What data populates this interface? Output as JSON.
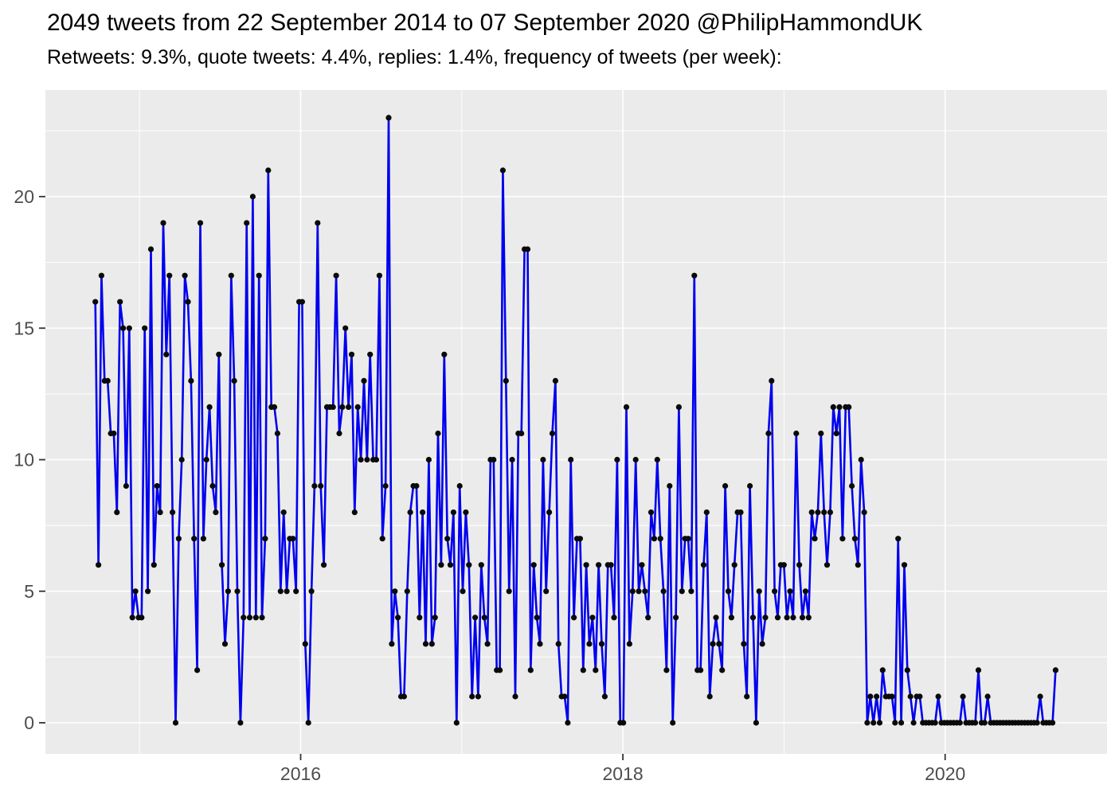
{
  "header": {
    "title": "2049 tweets from 22 September 2014 to 07 September 2020 @PhilipHammondUK",
    "subtitle": "Retweets: 9.3%, quote tweets: 4.4%, replies: 1.4%, frequency of tweets (per week):"
  },
  "chart_data": {
    "type": "line",
    "title": "2049 tweets from 22 September 2014 to 07 September 2020 @PhilipHammondUK",
    "subtitle": "Retweets: 9.3%, quote tweets: 4.4%, replies: 1.4%, frequency of tweets (per week):",
    "series_name": "tweets per week",
    "start_date": "2014-09-22",
    "end_date": "2020-09-07",
    "frequency": "weekly",
    "total_tweets": 2049,
    "retweets_pct": 9.3,
    "quote_tweets_pct": 4.4,
    "replies_pct": 1.4,
    "x_ticks": [
      {
        "label": "2016",
        "year": 2016
      },
      {
        "label": "2018",
        "year": 2018
      },
      {
        "label": "2020",
        "year": 2020
      }
    ],
    "x_minor_years": [
      2015,
      2017,
      2019
    ],
    "y_ticks": [
      {
        "label": "0",
        "value": 0
      },
      {
        "label": "5",
        "value": 5
      },
      {
        "label": "10",
        "value": 10
      },
      {
        "label": "15",
        "value": 15
      },
      {
        "label": "20",
        "value": 20
      }
    ],
    "y_minor_values": [
      2.5,
      7.5,
      12.5,
      17.5,
      22.5
    ],
    "ylim": [
      -1.2,
      24.1
    ],
    "grid": true,
    "legend": "none",
    "values": [
      16,
      6,
      17,
      13,
      13,
      11,
      11,
      8,
      16,
      15,
      9,
      15,
      4,
      5,
      4,
      4,
      15,
      5,
      18,
      6,
      9,
      8,
      19,
      14,
      17,
      8,
      0,
      7,
      10,
      17,
      16,
      13,
      7,
      2,
      19,
      7,
      10,
      12,
      9,
      8,
      14,
      6,
      3,
      5,
      17,
      13,
      5,
      0,
      4,
      19,
      4,
      20,
      4,
      17,
      4,
      7,
      21,
      12,
      12,
      11,
      5,
      8,
      5,
      7,
      7,
      5,
      16,
      16,
      3,
      0,
      5,
      9,
      19,
      9,
      6,
      12,
      12,
      12,
      17,
      11,
      12,
      15,
      12,
      14,
      8,
      12,
      10,
      13,
      10,
      14,
      10,
      10,
      17,
      7,
      9,
      23,
      3,
      5,
      4,
      1,
      1,
      5,
      8,
      9,
      9,
      4,
      8,
      3,
      10,
      3,
      4,
      11,
      6,
      14,
      7,
      6,
      8,
      0,
      9,
      5,
      8,
      6,
      1,
      4,
      1,
      6,
      4,
      3,
      10,
      10,
      2,
      2,
      21,
      13,
      5,
      10,
      1,
      11,
      11,
      18,
      18,
      2,
      6,
      4,
      3,
      10,
      5,
      8,
      11,
      13,
      3,
      1,
      1,
      0,
      10,
      4,
      7,
      7,
      2,
      6,
      3,
      4,
      2,
      6,
      3,
      1,
      6,
      6,
      4,
      10,
      0,
      0,
      12,
      3,
      5,
      10,
      5,
      6,
      5,
      4,
      8,
      7,
      10,
      7,
      5,
      2,
      9,
      0,
      4,
      12,
      5,
      7,
      7,
      5,
      17,
      2,
      2,
      6,
      8,
      1,
      3,
      4,
      3,
      2,
      9,
      5,
      4,
      6,
      8,
      8,
      3,
      1,
      9,
      4,
      0,
      5,
      3,
      4,
      11,
      13,
      5,
      4,
      6,
      6,
      4,
      5,
      4,
      11,
      6,
      4,
      5,
      4,
      8,
      7,
      8,
      11,
      8,
      6,
      8,
      12,
      11,
      12,
      7,
      12,
      12,
      9,
      7,
      6,
      10,
      8,
      0,
      1,
      0,
      1,
      0,
      2,
      1,
      1,
      1,
      0,
      7,
      0,
      6,
      2,
      1,
      0,
      1,
      1,
      0,
      0,
      0,
      0,
      0,
      1,
      0,
      0,
      0,
      0,
      0,
      0,
      0,
      1,
      0,
      0,
      0,
      0,
      2,
      0,
      0,
      1,
      0,
      0,
      0,
      0,
      0,
      0,
      0,
      0,
      0,
      0,
      0,
      0,
      0,
      0,
      0,
      0,
      1,
      0,
      0,
      0,
      0,
      2
    ],
    "colors": {
      "line": "#0000EE",
      "point": "#0a0a0a",
      "panel_bg": "#EBEBEB",
      "grid": "#FFFFFF",
      "tick_mark": "#333333",
      "tick_text": "#4D4D4D",
      "title_text": "#000000"
    }
  }
}
